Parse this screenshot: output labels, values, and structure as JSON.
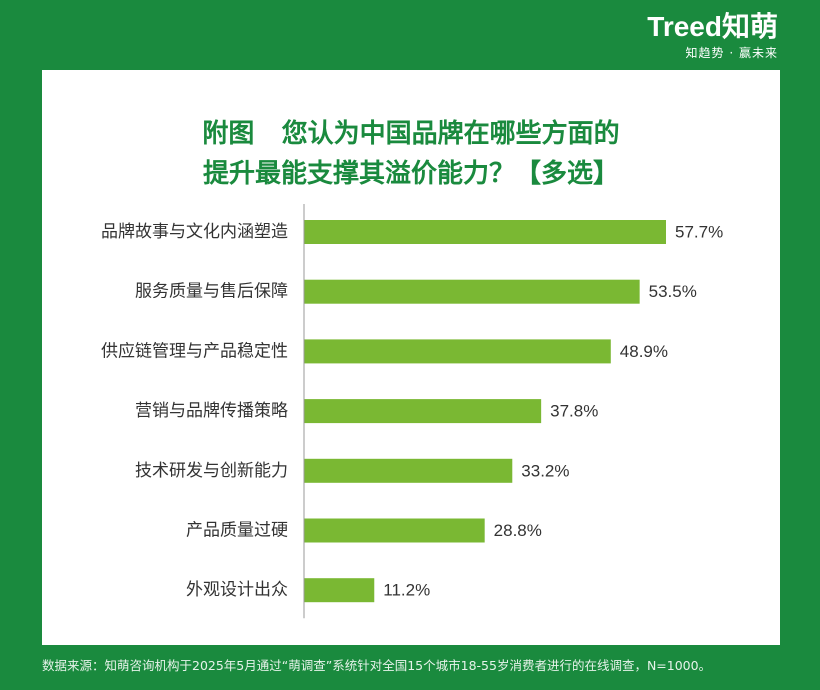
{
  "brand": {
    "logo": "Treed知萌",
    "slogan": "知趋势 · 赢未来"
  },
  "title": {
    "line1": "附图   您认为中国品牌在哪些方面的",
    "line2": "提升最能支撑其溢价能力？【多选】"
  },
  "footer": {
    "source": "数据来源：知萌咨询机构于2025年5月通过“萌调查”系统针对全国15个城市18-55岁消费者进行的在线调查，N=1000。"
  },
  "colors": {
    "background": "#1a8a3e",
    "bar": "#7ab833",
    "title": "#1a8a3e",
    "text": "#333333"
  },
  "chart_data": {
    "type": "bar",
    "orientation": "horizontal",
    "categories": [
      "品牌故事与文化内涵塑造",
      "服务质量与售后保障",
      "供应链管理与产品稳定性",
      "营销与品牌传播策略",
      "技术研发与创新能力",
      "产品质量过硬",
      "外观设计出众"
    ],
    "values": [
      57.7,
      53.5,
      48.9,
      37.8,
      33.2,
      28.8,
      11.2
    ],
    "value_labels": [
      "57.7%",
      "53.5%",
      "48.9%",
      "37.8%",
      "33.2%",
      "28.8%",
      "11.2%"
    ],
    "xlim": [
      0,
      57.7
    ],
    "grid": false,
    "legend": "none"
  }
}
